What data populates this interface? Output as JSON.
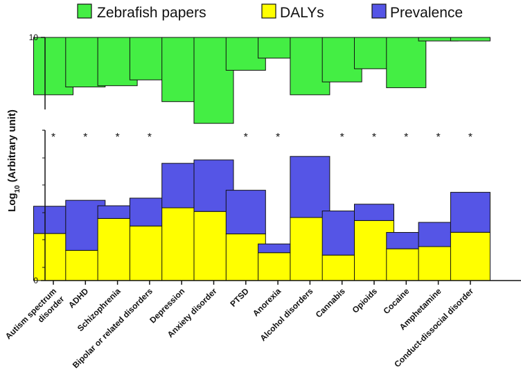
{
  "chart_data": {
    "type": "bar",
    "title": "",
    "ylabel": "Log10 (Arbitrary unit)",
    "ylabel_parts": {
      "prefix": "Log",
      "subscript": "10",
      "suffix": " (Arbitrary unit)"
    },
    "xlabel": "",
    "categories": [
      [
        "Autism spectrum",
        "disorder"
      ],
      [
        "ADHD"
      ],
      [
        "Schizophrenia"
      ],
      [
        "Bipolar or related disorders"
      ],
      [
        "Depression"
      ],
      [
        "Anxiety disorder"
      ],
      [
        "PTSD"
      ],
      [
        "Anorexia"
      ],
      [
        "Alcohol disorders"
      ],
      [
        "Cannabis"
      ],
      [
        "Opioids"
      ],
      [
        "Cocaine"
      ],
      [
        "Amphetamine"
      ],
      [
        "Conduct-dissocial disorder"
      ]
    ],
    "series": [
      {
        "name": "Zebrafish papers",
        "color": "#44ee44",
        "panel": "top",
        "values": [
          2.27,
          1.96,
          1.91,
          1.68,
          2.54,
          3.4,
          1.3,
          0.82,
          2.27,
          1.76,
          1.24,
          1.99,
          0.14,
          0.14
        ]
      },
      {
        "name": "DALYs",
        "color": "#ffff00",
        "panel": "bottom",
        "stacked_base": true,
        "values": [
          3.88,
          2.49,
          5.12,
          4.5,
          6.0,
          5.7,
          3.85,
          2.3,
          5.2,
          2.1,
          4.95,
          2.62,
          2.8,
          3.98
        ]
      },
      {
        "name": "Prevalence",
        "color": "#5555e6",
        "panel": "bottom",
        "stacked_on": "DALYs",
        "values": [
          2.25,
          4.13,
          1.05,
          2.3,
          3.67,
          4.25,
          3.6,
          0.72,
          5.04,
          3.64,
          1.35,
          1.35,
          2.0,
          3.3
        ]
      }
    ],
    "top_axis": {
      "ymax": 10,
      "ticks": [
        "10"
      ],
      "direction": "down-from-max"
    },
    "bottom_axis": {
      "ylim": [
        0,
        11
      ],
      "ticks": [
        "0"
      ]
    },
    "significance_markers": [
      "*",
      "*",
      "*",
      "*",
      "",
      "",
      "*",
      "*",
      "",
      "*",
      "*",
      "*",
      "*",
      "*"
    ],
    "legend_position": "top",
    "grid": false
  }
}
